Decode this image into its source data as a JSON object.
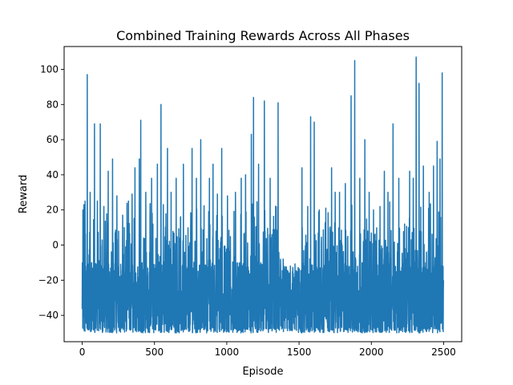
{
  "chart_data": {
    "type": "line",
    "title": "Combined Training Rewards Across All Phases",
    "xlabel": "Episode",
    "ylabel": "Reward",
    "xlim": [
      -125,
      2625
    ],
    "ylim": [
      -55,
      113
    ],
    "xticks": [
      0,
      500,
      1000,
      1500,
      2000,
      2500
    ],
    "yticks": [
      -40,
      -20,
      0,
      20,
      40,
      60,
      80,
      100
    ],
    "grid": false,
    "legend": "none",
    "series_color": "#1f77b4",
    "episodes": 2500,
    "reward_floor": -50,
    "peaks": [
      {
        "x": 2,
        "y": -20
      },
      {
        "x": 5,
        "y": 20
      },
      {
        "x": 12,
        "y": 23
      },
      {
        "x": 20,
        "y": 25
      },
      {
        "x": 35,
        "y": 97
      },
      {
        "x": 55,
        "y": 30
      },
      {
        "x": 85,
        "y": 69
      },
      {
        "x": 105,
        "y": 25
      },
      {
        "x": 125,
        "y": 69
      },
      {
        "x": 150,
        "y": 22
      },
      {
        "x": 180,
        "y": 42
      },
      {
        "x": 210,
        "y": 49
      },
      {
        "x": 240,
        "y": 28
      },
      {
        "x": 280,
        "y": 17
      },
      {
        "x": 320,
        "y": 25
      },
      {
        "x": 345,
        "y": 29
      },
      {
        "x": 365,
        "y": 44
      },
      {
        "x": 395,
        "y": 49
      },
      {
        "x": 405,
        "y": 71
      },
      {
        "x": 440,
        "y": 30
      },
      {
        "x": 480,
        "y": 38
      },
      {
        "x": 520,
        "y": 46
      },
      {
        "x": 545,
        "y": 80
      },
      {
        "x": 590,
        "y": 55
      },
      {
        "x": 615,
        "y": 30
      },
      {
        "x": 650,
        "y": 38
      },
      {
        "x": 700,
        "y": 46
      },
      {
        "x": 760,
        "y": 55
      },
      {
        "x": 790,
        "y": 38
      },
      {
        "x": 820,
        "y": 60
      },
      {
        "x": 880,
        "y": 38
      },
      {
        "x": 905,
        "y": 46
      },
      {
        "x": 935,
        "y": 29
      },
      {
        "x": 965,
        "y": 55
      },
      {
        "x": 1005,
        "y": 28
      },
      {
        "x": 1060,
        "y": 30
      },
      {
        "x": 1100,
        "y": 38
      },
      {
        "x": 1130,
        "y": 40
      },
      {
        "x": 1170,
        "y": 63
      },
      {
        "x": 1185,
        "y": 84
      },
      {
        "x": 1220,
        "y": 46
      },
      {
        "x": 1260,
        "y": 82
      },
      {
        "x": 1300,
        "y": 38
      },
      {
        "x": 1340,
        "y": 22
      },
      {
        "x": 1355,
        "y": 81
      },
      {
        "x": 1390,
        "y": -8
      },
      {
        "x": 1440,
        "y": -12
      },
      {
        "x": 1480,
        "y": -18
      },
      {
        "x": 1520,
        "y": 44
      },
      {
        "x": 1560,
        "y": 22
      },
      {
        "x": 1580,
        "y": 73
      },
      {
        "x": 1605,
        "y": 70
      },
      {
        "x": 1640,
        "y": 20
      },
      {
        "x": 1685,
        "y": 21
      },
      {
        "x": 1725,
        "y": 44
      },
      {
        "x": 1750,
        "y": 30
      },
      {
        "x": 1780,
        "y": 30
      },
      {
        "x": 1820,
        "y": 35
      },
      {
        "x": 1860,
        "y": 85
      },
      {
        "x": 1885,
        "y": 105
      },
      {
        "x": 1920,
        "y": 38
      },
      {
        "x": 1955,
        "y": 60
      },
      {
        "x": 1985,
        "y": 30
      },
      {
        "x": 2015,
        "y": 20
      },
      {
        "x": 2060,
        "y": 22
      },
      {
        "x": 2090,
        "y": 42
      },
      {
        "x": 2115,
        "y": 30
      },
      {
        "x": 2150,
        "y": 69
      },
      {
        "x": 2190,
        "y": 38
      },
      {
        "x": 2230,
        "y": 12
      },
      {
        "x": 2265,
        "y": 42
      },
      {
        "x": 2290,
        "y": 38
      },
      {
        "x": 2310,
        "y": 107
      },
      {
        "x": 2330,
        "y": 92
      },
      {
        "x": 2360,
        "y": 45
      },
      {
        "x": 2400,
        "y": 30
      },
      {
        "x": 2430,
        "y": 45
      },
      {
        "x": 2455,
        "y": 59
      },
      {
        "x": 2475,
        "y": 49
      },
      {
        "x": 2490,
        "y": 98
      },
      {
        "x": 2499,
        "y": -20
      }
    ]
  }
}
